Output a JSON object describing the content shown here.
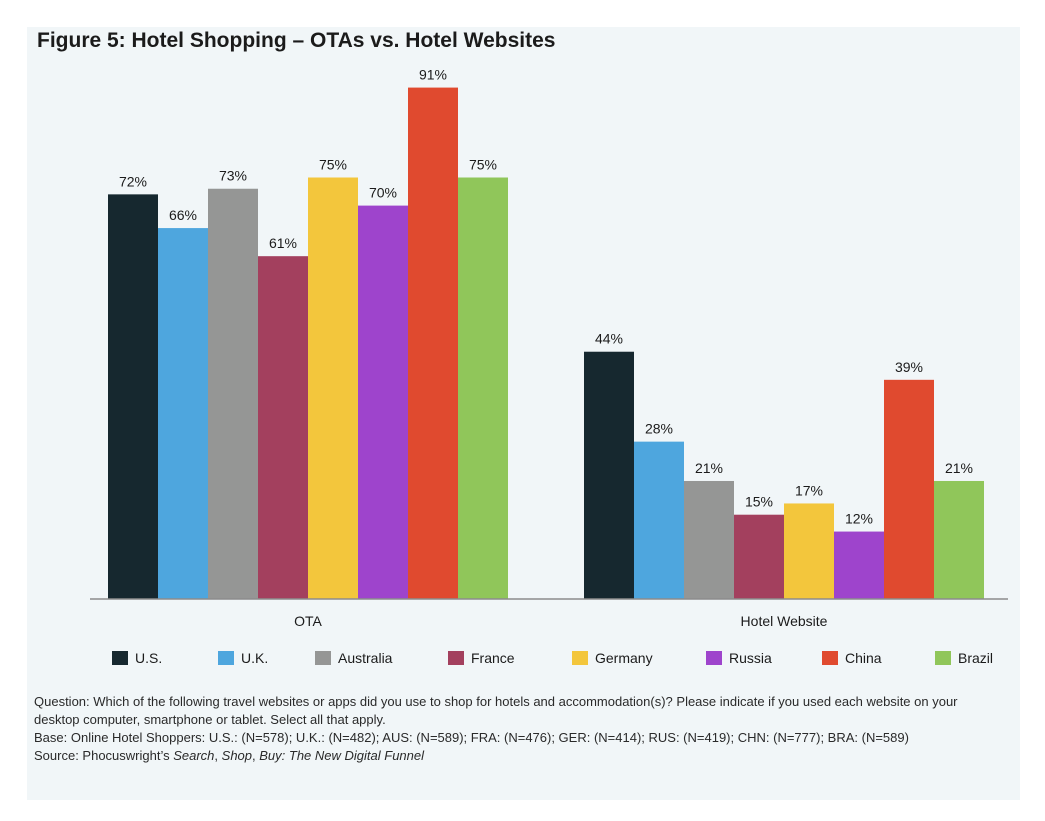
{
  "title": "Figure 5: Hotel Shopping – OTAs vs. Hotel Websites",
  "chart_data": {
    "type": "bar",
    "categories": [
      "OTA",
      "Hotel Website"
    ],
    "series": [
      {
        "name": "U.S.",
        "color": "#16282f",
        "values": [
          72,
          44
        ]
      },
      {
        "name": "U.K.",
        "color": "#4ea6de",
        "values": [
          66,
          28
        ]
      },
      {
        "name": "Australia",
        "color": "#959695",
        "values": [
          73,
          21
        ]
      },
      {
        "name": "France",
        "color": "#a3405e",
        "values": [
          61,
          15
        ]
      },
      {
        "name": "Germany",
        "color": "#f3c63c",
        "values": [
          75,
          17
        ]
      },
      {
        "name": "Russia",
        "color": "#9e44cc",
        "values": [
          70,
          12
        ]
      },
      {
        "name": "China",
        "color": "#e04a2f",
        "values": [
          91,
          39
        ]
      },
      {
        "name": "Brazil",
        "color": "#90c65a",
        "values": [
          75,
          21
        ]
      }
    ],
    "value_suffix": "%",
    "ylim": [
      0,
      100
    ],
    "grid": false,
    "legend_position": "bottom"
  },
  "notes": {
    "question": "Question: Which of the following travel websites or apps did you use to shop for hotels and accommodation(s)? Please indicate if you used each website on your desktop computer, smartphone or tablet. Select all that apply.",
    "base": "Base: Online Hotel Shoppers: U.S.: (N=578); U.K.: (N=482); AUS: (N=589); FRA: (N=476); GER: (N=414); RUS: (N=419); CHN: (N=777); BRA: (N=589)",
    "source_prefix": "Source: Phocuswright’s ",
    "source_title_1": "Search",
    "source_sep_1": ", ",
    "source_title_2": "Shop",
    "source_sep_2": ", ",
    "source_title_3": "Buy: The New Digital Funnel"
  }
}
